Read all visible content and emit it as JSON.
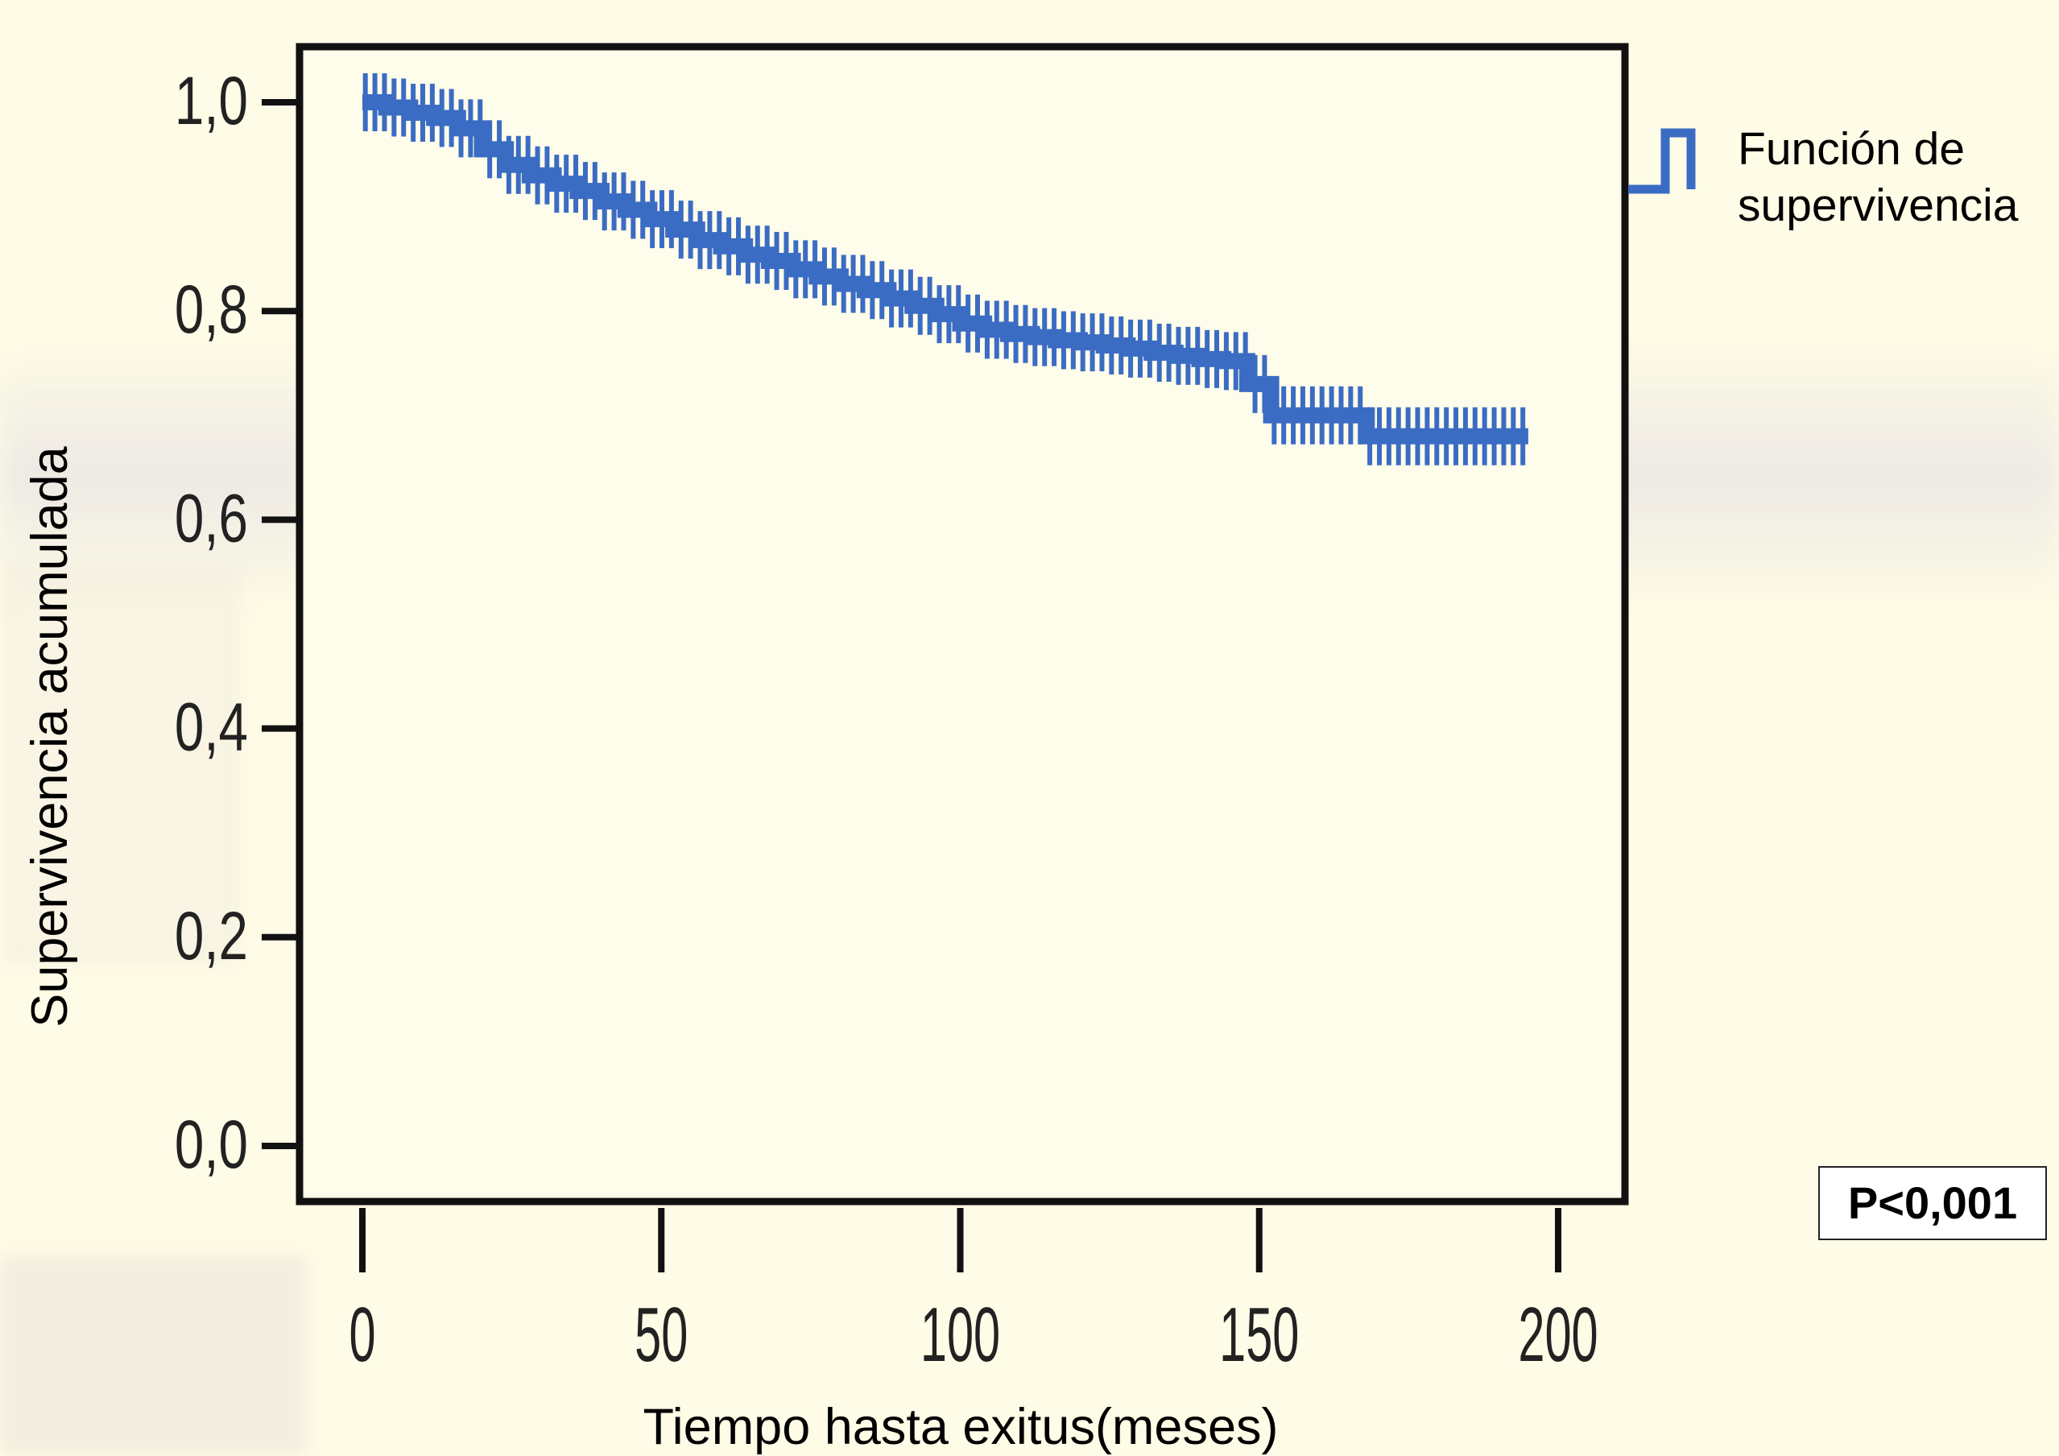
{
  "chart_data": {
    "type": "line",
    "style": "step",
    "title": "",
    "xlabel": "Tiempo hasta exitus(meses)",
    "ylabel": "Supervivencia acumulada",
    "xlim": [
      0,
      200
    ],
    "ylim": [
      0.0,
      1.0
    ],
    "x_ticks": [
      0,
      50,
      100,
      150,
      200
    ],
    "x_tick_labels": [
      "0",
      "50",
      "100",
      "150",
      "200"
    ],
    "y_ticks": [
      0.0,
      0.2,
      0.4,
      0.6,
      0.8,
      1.0
    ],
    "y_tick_labels": [
      "0,0",
      "0,2",
      "0,4",
      "0,6",
      "0,8",
      "1,0"
    ],
    "grid": false,
    "legend_position": "right",
    "series": [
      {
        "name": "Función de supervivencia",
        "color": "#3b6cc4",
        "censored_marks": true,
        "x": [
          0,
          4,
          8,
          12,
          16,
          20,
          24,
          28,
          32,
          36,
          40,
          44,
          48,
          52,
          56,
          60,
          64,
          68,
          72,
          76,
          80,
          84,
          88,
          92,
          96,
          100,
          104,
          108,
          112,
          116,
          120,
          124,
          128,
          132,
          136,
          140,
          144,
          148,
          152,
          156,
          160,
          164,
          168,
          172,
          176,
          180,
          184,
          188,
          192,
          195
        ],
        "y": [
          1.0,
          0.995,
          0.99,
          0.985,
          0.975,
          0.955,
          0.94,
          0.93,
          0.922,
          0.915,
          0.905,
          0.897,
          0.888,
          0.878,
          0.868,
          0.862,
          0.854,
          0.848,
          0.84,
          0.833,
          0.826,
          0.82,
          0.812,
          0.805,
          0.797,
          0.788,
          0.782,
          0.778,
          0.775,
          0.772,
          0.77,
          0.767,
          0.764,
          0.76,
          0.757,
          0.754,
          0.752,
          0.73,
          0.7,
          0.7,
          0.7,
          0.7,
          0.68,
          0.68,
          0.68,
          0.68,
          0.68,
          0.68,
          0.68,
          0.68
        ]
      }
    ],
    "annotation": "P<0,001"
  }
}
